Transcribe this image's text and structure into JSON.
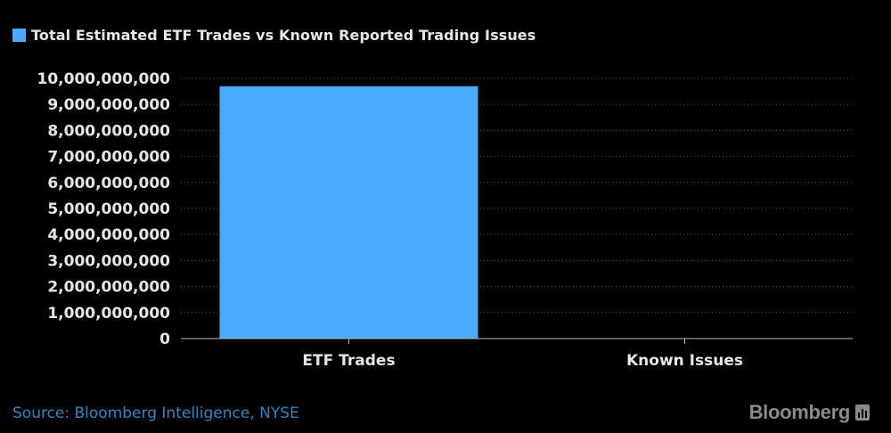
{
  "chart_data": {
    "type": "bar",
    "title": "",
    "categories": [
      "ETF Trades",
      "Known Issues"
    ],
    "series": [
      {
        "name": "Total Estimated ETF Trades vs Known Reported Trading Issues",
        "values": [
          9700000000,
          0
        ]
      }
    ],
    "xlabel": "",
    "ylabel": "",
    "ylim": [
      0,
      10000000000
    ],
    "yticks": [
      "0",
      "1,000,000,000",
      "2,000,000,000",
      "3,000,000,000",
      "4,000,000,000",
      "5,000,000,000",
      "6,000,000,000",
      "7,000,000,000",
      "8,000,000,000",
      "9,000,000,000",
      "10,000,000,000"
    ],
    "grid": true,
    "legend_position": "top-left",
    "colors": {
      "bar": "#47acff",
      "background": "#000000",
      "grid": "#555555",
      "axis_text": "#e6e6e6"
    }
  },
  "footer": {
    "source": "Source: Bloomberg Intelligence, NYSE",
    "brand": "Bloomberg",
    "brand_icon": "bloomberg-terminal-icon"
  }
}
